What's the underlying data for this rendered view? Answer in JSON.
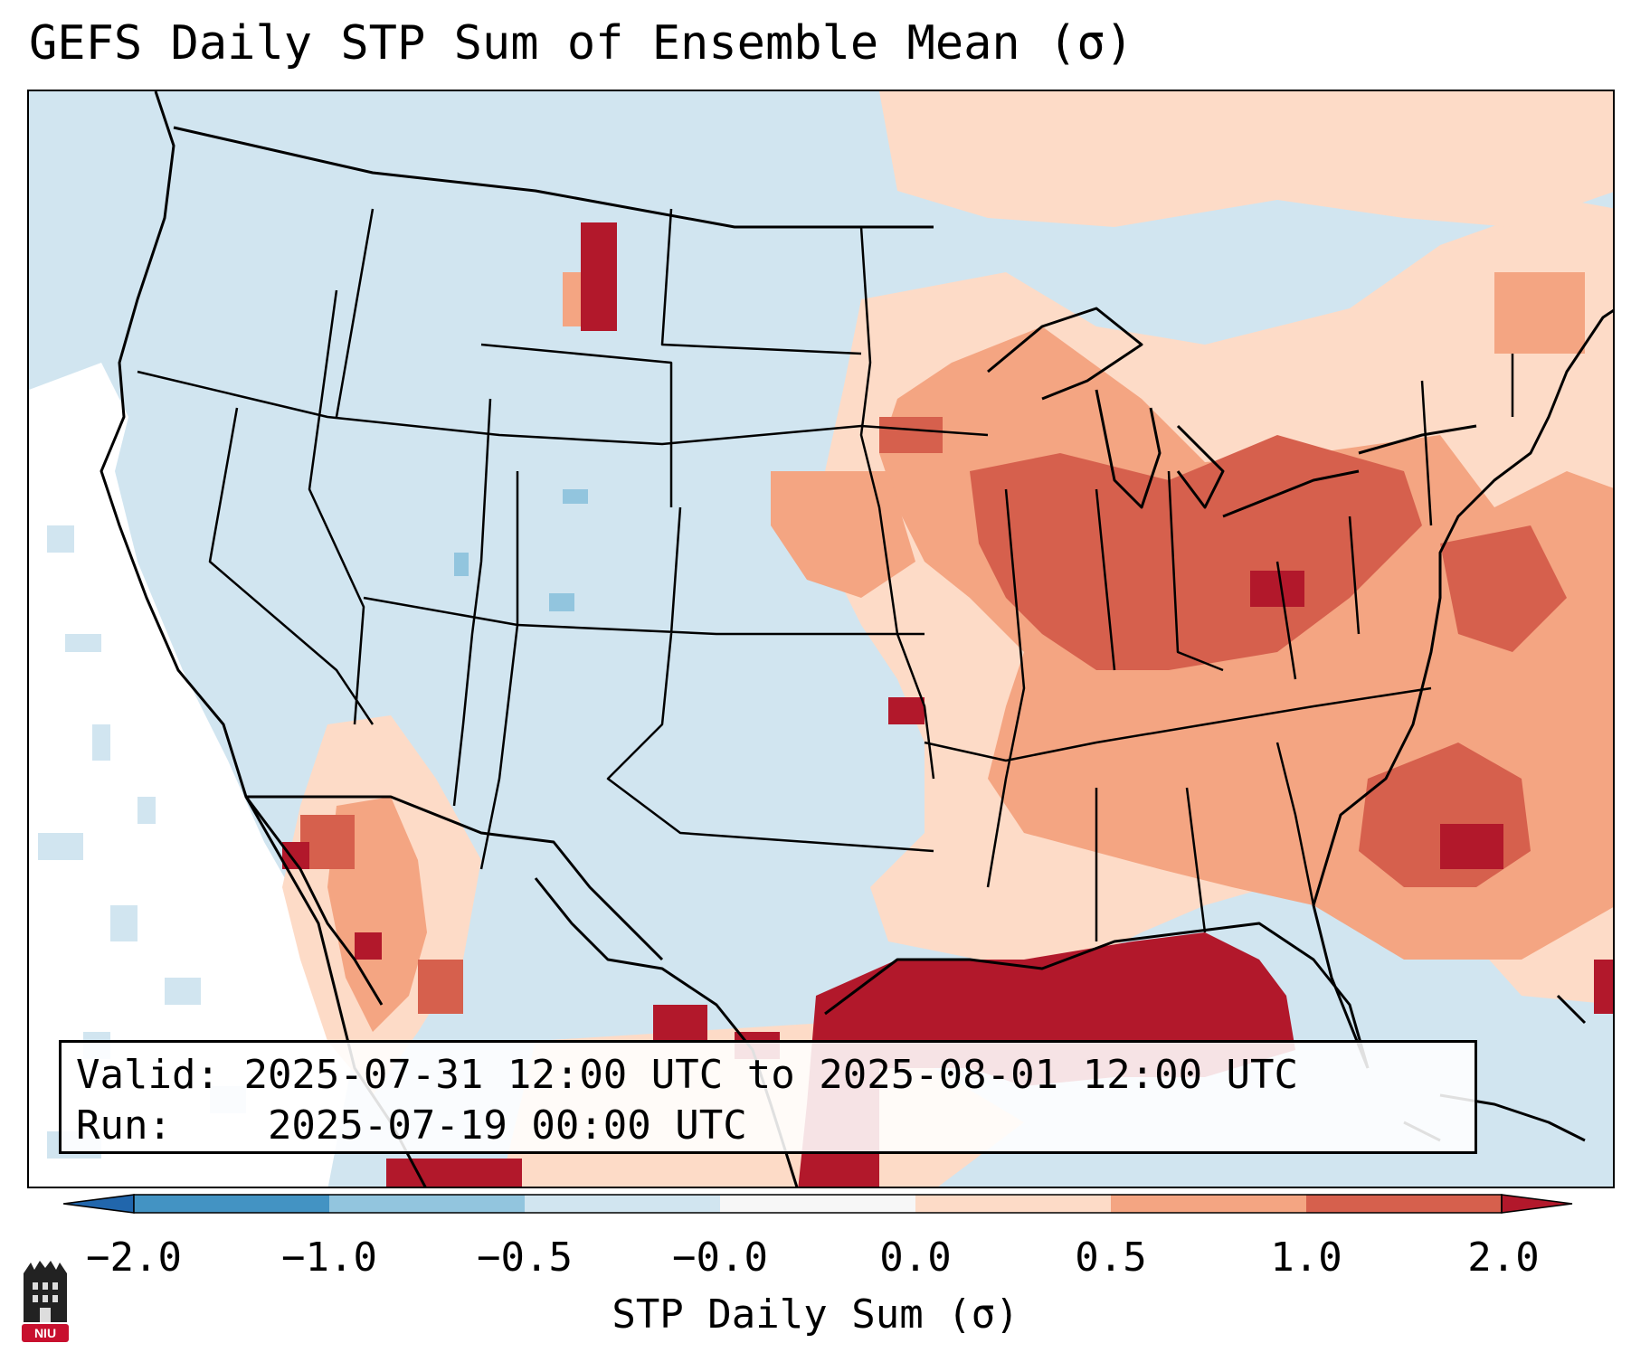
{
  "title": "GEFS Daily STP Sum of Ensemble Mean (σ)",
  "info": {
    "valid_key": "Valid:",
    "valid_value": "2025-07-31 12:00 UTC to 2025-08-01 12:00 UTC",
    "run_key": "Run:",
    "run_value": "2025-07-19 00:00 UTC"
  },
  "colorbar": {
    "label": "STP Daily Sum (σ)",
    "ticks": [
      "−2.0",
      "−1.0",
      "−0.5",
      "−0.0",
      "0.0",
      "0.5",
      "1.0",
      "2.0"
    ],
    "segments": [
      {
        "range": "-2.0 to -1.0",
        "color": "#4393c3"
      },
      {
        "range": "-1.0 to -0.5",
        "color": "#92c5de"
      },
      {
        "range": "-0.5 to -0.0",
        "color": "#d1e5f0"
      },
      {
        "range": "-0.0 to 0.0",
        "color": "#f7f7f7"
      },
      {
        "range": "0.0 to 0.5",
        "color": "#fddbc7"
      },
      {
        "range": "0.5 to 1.0",
        "color": "#f4a582"
      },
      {
        "range": "1.0 to 2.0",
        "color": "#d6604d"
      }
    ],
    "under_color": "#2166ac",
    "over_color": "#b2182b"
  },
  "logo": {
    "text": "NIU",
    "color": "#c8102e"
  },
  "map": {
    "background_color": "#d1e5f0",
    "ocean_edge_color": "#ffffff",
    "gulf_color": "#b2182b",
    "midwest_color": "#f4a582",
    "east_color": "#d6604d"
  }
}
